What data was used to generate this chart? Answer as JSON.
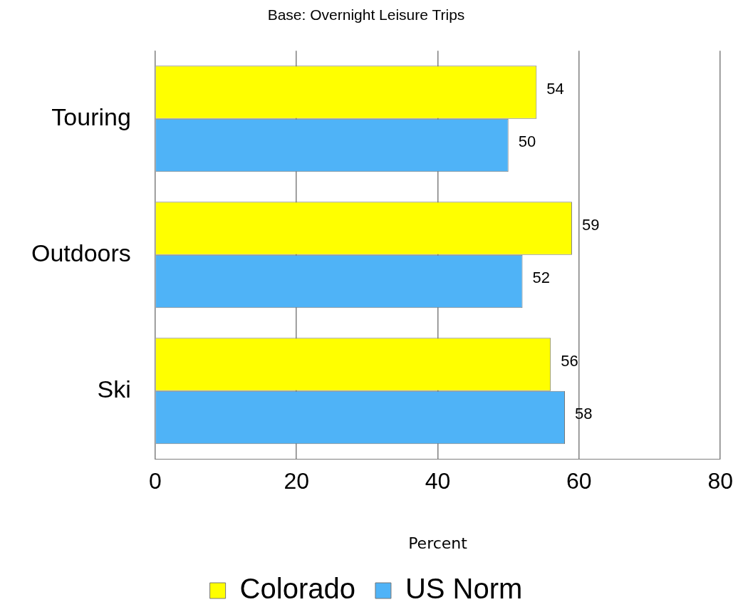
{
  "chart_data": {
    "type": "bar",
    "orientation": "horizontal",
    "title": "Base: Overnight Leisure Trips",
    "xlabel": "Percent",
    "categories": [
      "Touring",
      "Outdoors",
      "Ski"
    ],
    "series": [
      {
        "name": "Colorado",
        "color": "#ffff00",
        "values": [
          54,
          59,
          56
        ]
      },
      {
        "name": "US Norm",
        "color": "#4fb3f7",
        "values": [
          50,
          52,
          58
        ]
      }
    ],
    "xlim": [
      0,
      80
    ],
    "xticks": [
      0,
      20,
      40,
      60,
      80
    ],
    "grid": "x",
    "legend": "bottom",
    "data_labels": true
  }
}
